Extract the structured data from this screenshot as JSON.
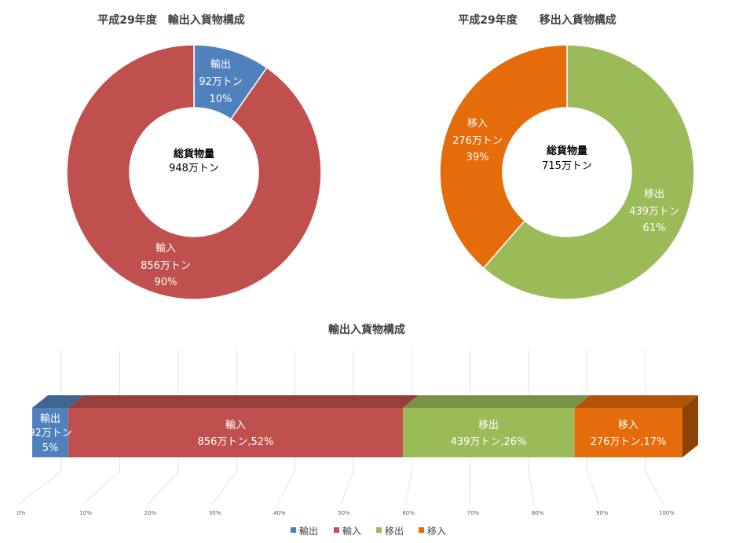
{
  "chart_data": [
    {
      "type": "pie",
      "title": "平成29年度　輸出入貨物構成",
      "center": {
        "label": "総貨物量",
        "value": "948万トン"
      },
      "slices": [
        {
          "name": "輸出",
          "value": 92,
          "value_label": "92万トン",
          "percent_label": "10%",
          "color": "#4f81bd"
        },
        {
          "name": "輸入",
          "value": 856,
          "value_label": "856万トン",
          "percent_label": "90%",
          "color": "#c0504d"
        }
      ]
    },
    {
      "type": "pie",
      "title": "平成29年度　　移出入貨物構成",
      "center": {
        "label": "総貨物量",
        "value": "715万トン"
      },
      "slices": [
        {
          "name": "移出",
          "value": 439,
          "value_label": "439万トン",
          "percent_label": "61%",
          "color": "#9bbb59"
        },
        {
          "name": "移入",
          "value": 276,
          "value_label": "276万トン",
          "percent_label": "39%",
          "color": "#e46c0a"
        }
      ]
    },
    {
      "type": "bar",
      "title": "輸出入貨物構成",
      "stacked": "100%",
      "orientation": "horizontal",
      "x_ticks": [
        "0%",
        "10%",
        "20%",
        "30%",
        "40%",
        "50%",
        "60%",
        "70%",
        "80%",
        "90%",
        "100%"
      ],
      "series": [
        {
          "name": "輸出",
          "value": 92,
          "value_label": "92万トン",
          "percent_label": "5%",
          "color": "#4f81bd"
        },
        {
          "name": "輸入",
          "value": 856,
          "value_label": "856万トン,52%",
          "color": "#c0504d"
        },
        {
          "name": "移出",
          "value": 439,
          "value_label": "439万トン,26%",
          "color": "#9bbb59"
        },
        {
          "name": "移入",
          "value": 276,
          "value_label": "276万トン,17%",
          "color": "#e46c0a"
        }
      ],
      "legend": "bottom"
    }
  ]
}
